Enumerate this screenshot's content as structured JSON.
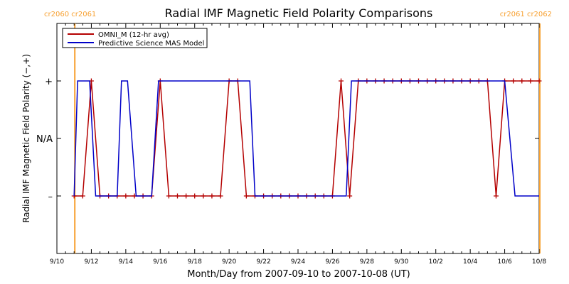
{
  "chart_data": {
    "type": "line",
    "title": "Radial IMF Magnetic Field Polarity Comparisons",
    "xlabel": "Month/Day from 2007-09-10 to 2007-10-08 (UT)",
    "ylabel": "Radial IMF Magnetic Field Polarity (−,+)",
    "x_unit": "days since 2007-09-10 00:00 UT",
    "xlim": [
      0,
      28
    ],
    "ylim": [
      -2,
      2
    ],
    "x_ticks": [
      {
        "x": 0,
        "label": "9/10"
      },
      {
        "x": 2,
        "label": "9/12"
      },
      {
        "x": 4,
        "label": "9/14"
      },
      {
        "x": 6,
        "label": "9/16"
      },
      {
        "x": 8,
        "label": "9/18"
      },
      {
        "x": 10,
        "label": "9/20"
      },
      {
        "x": 12,
        "label": "9/22"
      },
      {
        "x": 14,
        "label": "9/24"
      },
      {
        "x": 16,
        "label": "9/26"
      },
      {
        "x": 18,
        "label": "9/28"
      },
      {
        "x": 20,
        "label": "9/30"
      },
      {
        "x": 22,
        "label": "10/2"
      },
      {
        "x": 24,
        "label": "10/4"
      },
      {
        "x": 26,
        "label": "10/6"
      },
      {
        "x": 28,
        "label": "10/8"
      }
    ],
    "y_ticks": [
      {
        "y": 1,
        "label": "+"
      },
      {
        "y": 0,
        "label": "N/A"
      },
      {
        "y": -1,
        "label": "–"
      }
    ],
    "carrington": [
      {
        "x": 1.04,
        "label": "cr2060 cr2061"
      },
      {
        "x": 28.04,
        "label": "cr2061 cr2062"
      }
    ],
    "carrington_color": "#f7a030",
    "legend": "top-left",
    "series": [
      {
        "name": "OMNI_M (12-hr avg)",
        "color": "#b40000",
        "markers": true,
        "x": [
          1.0,
          1.5,
          2.0,
          2.5,
          3.0,
          3.5,
          4.0,
          4.5,
          5.0,
          5.5,
          6.0,
          6.5,
          7.0,
          7.5,
          8.0,
          8.5,
          9.0,
          9.5,
          10.0,
          10.5,
          11.0,
          11.5,
          12.0,
          12.5,
          13.0,
          13.5,
          14.0,
          14.5,
          15.0,
          15.5,
          16.0,
          16.5,
          17.0,
          17.5,
          18.0,
          18.5,
          19.0,
          19.5,
          20.0,
          20.5,
          21.0,
          21.5,
          22.0,
          22.5,
          23.0,
          23.5,
          24.0,
          24.5,
          25.0,
          25.5,
          26.0,
          26.5,
          27.0,
          27.5,
          28.0
        ],
        "y": [
          -1,
          -1,
          1,
          -1,
          -1,
          -1,
          -1,
          -1,
          -1,
          -1,
          1,
          -1,
          -1,
          -1,
          -1,
          -1,
          -1,
          -1,
          1,
          1,
          -1,
          -1,
          -1,
          -1,
          -1,
          -1,
          -1,
          -1,
          -1,
          -1,
          -1,
          1,
          -1,
          1,
          1,
          1,
          1,
          1,
          1,
          1,
          1,
          1,
          1,
          1,
          1,
          1,
          1,
          1,
          1,
          -1,
          1,
          1,
          1,
          1,
          1
        ]
      },
      {
        "name": "Predictive Science MAS Model",
        "color": "#0000c8",
        "markers": false,
        "x": [
          1.0,
          1.2,
          1.9,
          2.25,
          3.0,
          3.5,
          3.75,
          4.1,
          4.6,
          5.5,
          5.9,
          6.0,
          6.3,
          9.0,
          10.0,
          11.2,
          11.5,
          13.0,
          14.0,
          16.0,
          16.8,
          17.1,
          17.4,
          18.0,
          20.0,
          24.0,
          25.0,
          26.0,
          26.6,
          27.0,
          28.0
        ],
        "y": [
          -1,
          1,
          1,
          -1,
          -1,
          -1,
          1,
          1,
          -1,
          -1,
          1,
          1,
          1,
          1,
          1,
          1,
          -1,
          -1,
          -1,
          -1,
          -1,
          1,
          1,
          1,
          1,
          1,
          1,
          1,
          -1,
          -1,
          -1
        ]
      }
    ]
  }
}
